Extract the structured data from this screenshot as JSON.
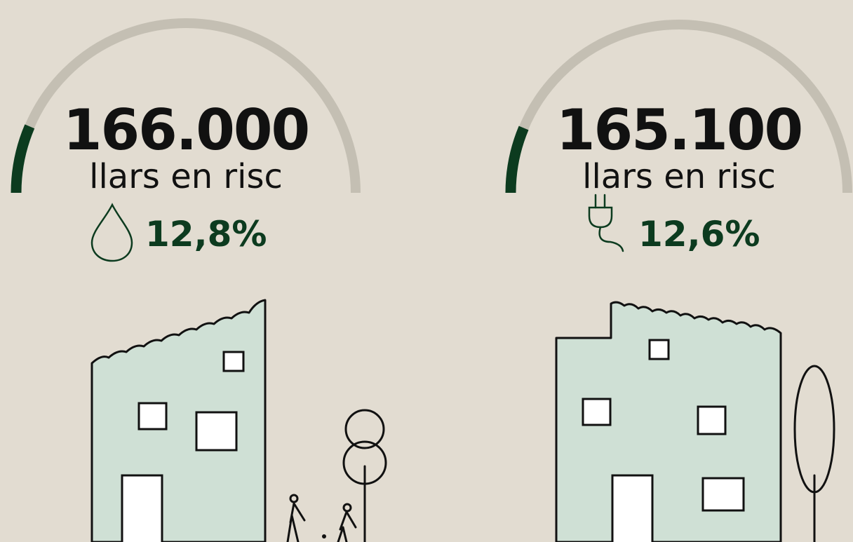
{
  "panels": [
    {
      "value_text": "166.000",
      "label": "llars en risc",
      "percent": 12.8,
      "percent_label": "12,8%"
    },
    {
      "value_text": "165.100",
      "label": "llars en risc",
      "percent": 12.6,
      "percent_label": "12,6%"
    }
  ]
}
